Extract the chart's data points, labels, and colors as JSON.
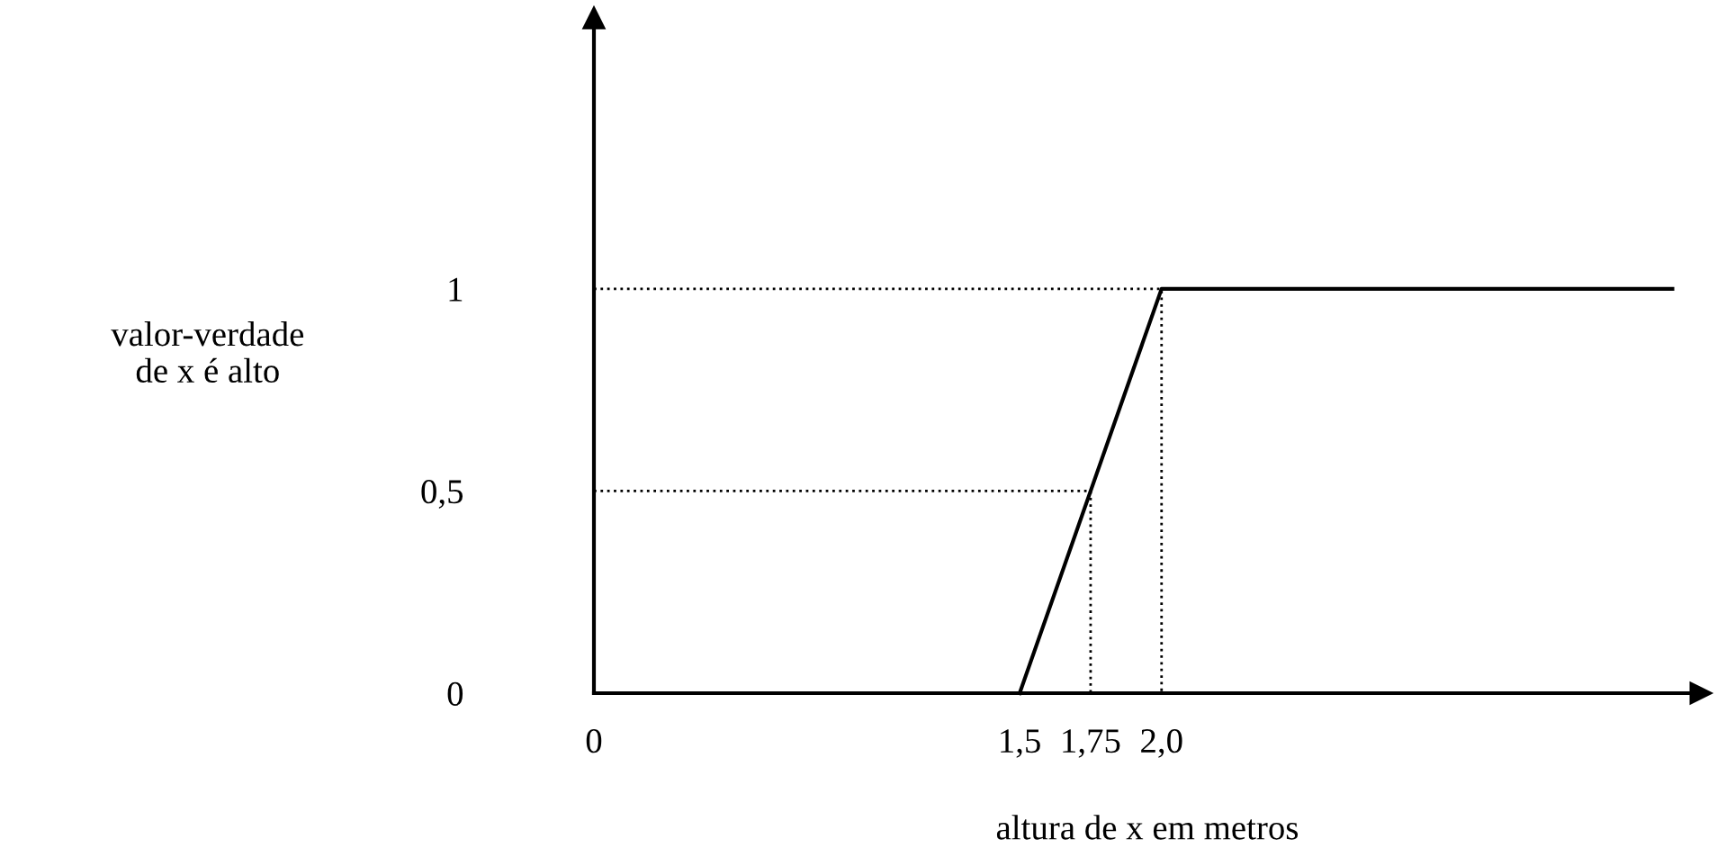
{
  "chart_data": {
    "type": "line",
    "xlabel": "altura de x em metros",
    "ylabel": "valor-verdade\nde x é alto",
    "xlim": [
      0,
      3.9
    ],
    "ylim": [
      0,
      1.67
    ],
    "xticks": [
      0,
      {
        "value": 1.5,
        "label": "1,5"
      },
      {
        "value": 1.75,
        "label": "1,75"
      },
      {
        "value": 2.0,
        "label": "2,0"
      }
    ],
    "yticks": [
      0,
      {
        "value": 0.5,
        "label": "0,5"
      },
      1
    ],
    "grid": false,
    "legend": false,
    "marker": "none",
    "series": [
      {
        "color": "#000000",
        "x": [
          1.5,
          2.0,
          3.8
        ],
        "values": [
          0,
          1,
          1
        ],
        "line_style": "solid"
      },
      {
        "color": "#000000",
        "x": [
          0,
          1.75,
          1.75
        ],
        "values": [
          0.5,
          0.5,
          0
        ],
        "line_style": "dotted"
      },
      {
        "color": "#000000",
        "x": [
          0,
          2.0,
          2.0
        ],
        "values": [
          1,
          1,
          0
        ],
        "line_style": "dotted"
      }
    ]
  }
}
